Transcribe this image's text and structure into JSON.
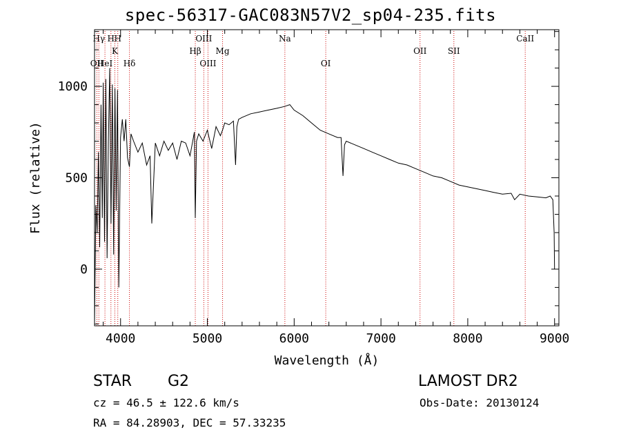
{
  "chart_data": {
    "type": "line",
    "title": "spec-56317-GAC083N57V2_sp04-235.fits",
    "xlabel": "Wavelength (Å)",
    "ylabel": "Flux (relative)",
    "xlim": [
      3700,
      9050
    ],
    "ylim": [
      -310,
      1310
    ],
    "x_ticks": [
      4000,
      5000,
      6000,
      7000,
      8000,
      9000
    ],
    "y_ticks": [
      0,
      500,
      1000
    ],
    "series": [
      {
        "x": [
          3700,
          3715,
          3730,
          3745,
          3760,
          3775,
          3790,
          3800,
          3815,
          3830,
          3845,
          3860,
          3875,
          3890,
          3905,
          3920,
          3935,
          3950,
          3965,
          3980,
          4000,
          4020,
          4040,
          4060,
          4080,
          4102,
          4120,
          4150,
          4200,
          4250,
          4300,
          4340,
          4360,
          4400,
          4450,
          4500,
          4550,
          4600,
          4650,
          4700,
          4750,
          4800,
          4850,
          4861,
          4875,
          4900,
          4950,
          5000,
          5050,
          5100,
          5150,
          5175,
          5200,
          5250,
          5300,
          5325,
          5340,
          5360,
          5400,
          5500,
          5600,
          5700,
          5800,
          5890,
          5950,
          6000,
          6100,
          6200,
          6300,
          6400,
          6500,
          6540,
          6563,
          6580,
          6600,
          6700,
          6800,
          6900,
          7000,
          7100,
          7200,
          7300,
          7400,
          7500,
          7600,
          7700,
          7800,
          7900,
          8000,
          8100,
          8200,
          8300,
          8400,
          8500,
          8540,
          8600,
          8700,
          8800,
          8900,
          8950,
          8980,
          8995,
          9000
        ],
        "y": [
          -300,
          350,
          200,
          640,
          120,
          900,
          280,
          1020,
          150,
          1040,
          60,
          700,
          1100,
          250,
          1010,
          80,
          990,
          320,
          980,
          -100,
          720,
          820,
          700,
          820,
          610,
          560,
          740,
          700,
          640,
          690,
          570,
          620,
          250,
          690,
          620,
          700,
          650,
          690,
          600,
          700,
          690,
          620,
          750,
          280,
          700,
          740,
          700,
          760,
          660,
          780,
          730,
          760,
          800,
          790,
          810,
          570,
          780,
          820,
          830,
          850,
          860,
          870,
          880,
          890,
          900,
          870,
          840,
          800,
          760,
          740,
          720,
          720,
          510,
          680,
          700,
          680,
          660,
          640,
          620,
          600,
          580,
          570,
          550,
          530,
          510,
          500,
          480,
          460,
          450,
          440,
          430,
          420,
          410,
          415,
          380,
          410,
          400,
          395,
          390,
          400,
          380,
          200,
          0
        ]
      }
    ],
    "lines": [
      {
        "label": "OII",
        "x": 3727,
        "row": 3
      },
      {
        "label": "Hγ",
        "x": 3750,
        "row": 0
      },
      {
        "label": "HeI",
        "x": 3820,
        "row": 3
      },
      {
        "label": "H",
        "x": 3889,
        "row": 0
      },
      {
        "label": "K",
        "x": 3934,
        "row": 1
      },
      {
        "label": "Hδ",
        "x": 4102,
        "row": 3
      },
      {
        "label": "H",
        "x": 3968,
        "row": 0
      },
      {
        "label": "Hβ",
        "x": 4861,
        "row": 2
      },
      {
        "label": "OIII",
        "x": 4959,
        "row": 0
      },
      {
        "label": "OIII",
        "x": 5007,
        "row": 3
      },
      {
        "label": "Mg",
        "x": 5175,
        "row": 2
      },
      {
        "label": "Na",
        "x": 5893,
        "row": 0
      },
      {
        "label": "OI",
        "x": 6364,
        "row": 3
      },
      {
        "label": "OII",
        "x": 7450,
        "row": 2
      },
      {
        "label": "SII",
        "x": 7840,
        "row": 2
      },
      {
        "label": "CaII",
        "x": 8662,
        "row": 0
      }
    ]
  },
  "info": {
    "object_class": "STAR",
    "subclass": "G2",
    "survey": "LAMOST DR2",
    "redshift": "cz = 46.5 ± 122.6 km/s",
    "obs_date": "Obs-Date: 20130124",
    "coords": "RA =  84.28903, DEC =  57.33235"
  },
  "colors": {
    "line": "#000000",
    "marker_lines": "#cc0000",
    "background": "#ffffff"
  }
}
